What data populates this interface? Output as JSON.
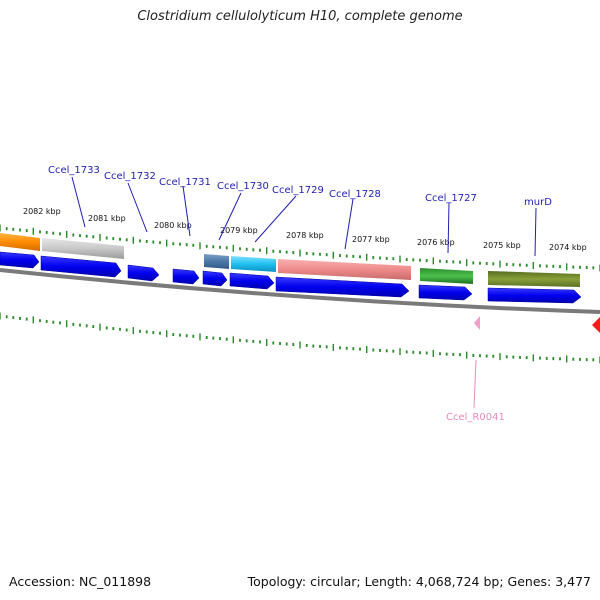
{
  "title": "Clostridium cellulolyticum H10, complete genome",
  "footer": {
    "accession": "Accession: NC_011898",
    "summary": "Topology: circular; Length: 4,068,724 bp; Genes: 3,477"
  },
  "scale_labels": [
    "2082 kbp",
    "2081 kbp",
    "2080 kbp",
    "2079 kbp",
    "2078 kbp",
    "2077 kbp",
    "2076 kbp",
    "2075 kbp",
    "2074 kbp"
  ],
  "gene_labels": [
    "Ccel_1733",
    "Ccel_1732",
    "Ccel_1731",
    "Ccel_1730",
    "Ccel_1729",
    "Ccel_1728",
    "Ccel_1727",
    "murD"
  ],
  "rna_labels": [
    "Ccel_R0041"
  ],
  "colors": {
    "cds": "#0000ee",
    "label": "#1f1fb0",
    "tick": "#2a8a2a",
    "backbone": "#7a7a7a",
    "rna": "#f0a0c8",
    "rna_label": "#e88ac0"
  }
}
